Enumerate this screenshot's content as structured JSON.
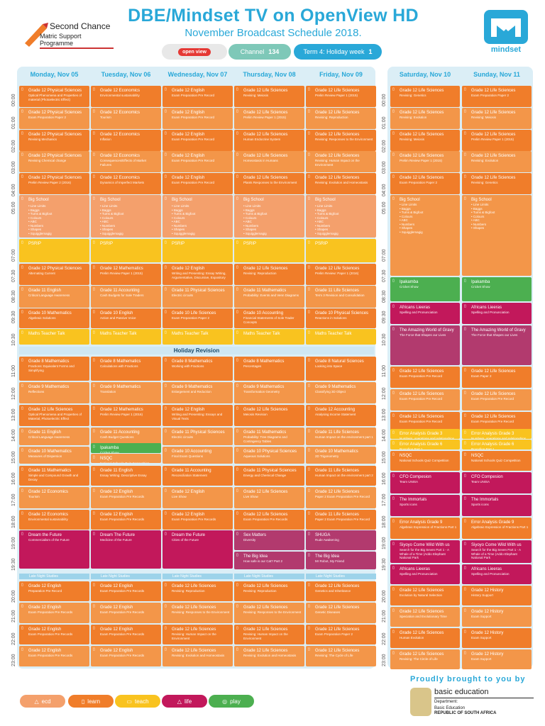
{
  "title": "DBE/Mindset TV on OpenView HD",
  "subtitle": "November Broadcast Schedule 2018.",
  "logo_left": {
    "line1": "Second Chance",
    "line2": "Matric Support Programme"
  },
  "logo_right": "mindset",
  "pills": {
    "openview": "open view",
    "channel_label": "Channel",
    "channel_value": "134",
    "term_label": "Term 4: Holiday week",
    "term_value": "1"
  },
  "days": [
    "Monday, Nov 05",
    "Tuesday, Nov 06",
    "Wednesday, Nov 07",
    "Thursday, Nov 08",
    "Friday, Nov 09",
    "Saturday, Nov 10",
    "Sunday, Nov 11"
  ],
  "times": [
    "00:00",
    "01:00",
    "02:00",
    "03:00",
    "04:00",
    "05:00",
    "07:00",
    "07:30",
    "08:30",
    "09:30",
    "10:30",
    "11:00",
    "12:00",
    "13:00",
    "14:00",
    "15:00",
    "16:00",
    "17:00",
    "18:00",
    "19:00",
    "19:30",
    "20:00",
    "21:00",
    "22:00",
    "23:00"
  ],
  "holiday_revision": "Holiday Revision",
  "late_night": "Late Night Studies",
  "colors": {
    "learn": "#f07d2a",
    "learn2": "#f39649",
    "psrip": "#f9c31f",
    "life": "#c2185b",
    "play": "#4caf50",
    "ecd": "#f4a06c",
    "blue": "#29a8d8"
  },
  "weekday": [
    [
      [
        "Grade 12 Physical Sciences",
        "Optical Phenomena and Properties of material (Photoelectric Effect)"
      ],
      [
        "Grade 12 Economics",
        "Environmental sustainability"
      ],
      [
        "Grade 12 English",
        "Exam Preparation Pre Record"
      ],
      [
        "Grade 12 Life Sciences",
        "Revising: Meiosis"
      ],
      [
        "Grade 12 Life Sciences",
        "Prelim Review Paper 1 (2015)"
      ]
    ],
    [
      [
        "Grade 12 Physical Sciences",
        "Exam Preparation Paper 2"
      ],
      [
        "Grade 12 Economics",
        "Tourism"
      ],
      [
        "Grade 12 English",
        "Exam Preparation Pre Record"
      ],
      [
        "Grade 12 Life Sciences",
        "Prelim Review Paper 1 (2015)"
      ],
      [
        "Grade 12 Life Sciences",
        "Revising: Reproduction"
      ]
    ],
    [
      [
        "Grade 12 Physical Sciences",
        "Revising Mechanics"
      ],
      [
        "Grade 12 Economics",
        "Inflation"
      ],
      [
        "Grade 12 English",
        "Exam Preparation Pre Record"
      ],
      [
        "Grade 12 Life Sciences",
        "Human Endocrine System"
      ],
      [
        "Grade 12 Life Sciences",
        "Revising: Responses to the Environment"
      ]
    ],
    [
      [
        "Grade 12 Physical Sciences",
        "Revising Chemical change"
      ],
      [
        "Grade 12 Economics",
        "Consequences/Effects of Market Failures"
      ],
      [
        "Grade 12 English",
        "Exam Preparation Pre Record"
      ],
      [
        "Grade 12 Life Sciences",
        "Homeostasis in Humans"
      ],
      [
        "Grade 12 Life Sciences",
        "Revising: Human Impact on the Environment"
      ]
    ],
    [
      [
        "Grade 12 Physical Sciences",
        "Prelim Review Paper 2 (2016)"
      ],
      [
        "Grade 12 Economics",
        "Dynamics of Imperfect Markets"
      ],
      [
        "Grade 12 English",
        "Exam Preparation Pre Record"
      ],
      [
        "Grade 12 Life Sciences",
        "Plants Responses to the Environment"
      ],
      [
        "Grade 12 Life Sciences",
        "Revising: Evolution and Homeostasis"
      ]
    ]
  ],
  "bigschool": {
    "title": "Big School",
    "items": [
      "Line Limits",
      "Baggs",
      "Tums & Bigfoot",
      "Colours",
      "ABC",
      "Numbers",
      "Shapes",
      "Squigglemagig"
    ]
  },
  "psrip": "PSRIP",
  "row0730": [
    [
      "Grade 12 Physical Sciences",
      "Alternating Current"
    ],
    [
      "Grade 12 Mathematics",
      "Prelim Review Paper 1 (2015)"
    ],
    [
      "Grade 12 English",
      "Writing and Presenting: Essay Writing, Argumentative, Discursive, Expository"
    ],
    [
      "Grade 12 Life Sciences",
      "Revising: Reproduction"
    ],
    [
      "Grade 12 Life Sciences",
      "Prelim Review: Paper 1 (2016)"
    ]
  ],
  "row0830": [
    [
      "Grade 11 English",
      "Critical Language Awareness"
    ],
    [
      "Grade 11 Accounting",
      "Cash Budgets for Sole Traders"
    ],
    [
      "Grade 11 Physical Sciences",
      "Electric circuits"
    ],
    [
      "Grade 11 Mathematics",
      "Probability: Events and Venn Diagrams"
    ],
    [
      "Grade 11 Life Sciences",
      "Term 3 Revision and Consolidation"
    ]
  ],
  "row0930": [
    [
      "Grade 10 Mathematics",
      "Algebraic Solutions"
    ],
    [
      "Grade 10 English",
      "Action and Passive Voice"
    ],
    [
      "Grade 10 Life Sciences",
      "Exam Preparation Paper 2"
    ],
    [
      "Grade 10 Accounting",
      "Financial Statements of Sole Trader Concepts"
    ],
    [
      "Grade 10 Physical Sciences",
      "Reactions in Solutions"
    ]
  ],
  "maths": "Maths Teacher Talk",
  "row1100": [
    [
      "Grade 8 Mathematics",
      "Fractions: Equivalent Forms and Simplifying"
    ],
    [
      "Grade 8 Mathematics",
      "Calculations with Fractions"
    ],
    [
      "Grade 8 Mathematics",
      "Working with Fractions"
    ],
    [
      "Grade 8 Mathematics",
      "Percentages"
    ],
    [
      "Grade 8 Natural Sciences",
      "Looking into Space"
    ]
  ],
  "row1200": [
    [
      "Grade 9 Mathematics",
      "Reflections"
    ],
    [
      "Grade 9 Mathematics",
      "Translation"
    ],
    [
      "Grade 9 Mathematics",
      "Enlargement and Reduction"
    ],
    [
      "Grade 9 Mathematics",
      "Transformation Geometry"
    ],
    [
      "Grade 9 Mathematics",
      "Classifying 3D Object"
    ]
  ],
  "row1300": [
    [
      "Grade 12 Life Sciences",
      "Optical Phenomena and Properties of Material, Photoelectric Effect"
    ],
    [
      "Grade 12 Mathematics",
      "Prelim Review Paper 1 (2016)"
    ],
    [
      "Grade 12 English",
      "Writing and Presenting: Essays and Visual Texts"
    ],
    [
      "Grade 12 Life Sciences",
      "Meiosis Revision"
    ],
    [
      "Grade 12 Accounting",
      "Analysing Income Statement"
    ]
  ],
  "row1400": [
    [
      "Grade 11 English",
      "Critical Language Awareness"
    ],
    [
      "Grade 11 Accounting",
      "Cash Budget Questions"
    ],
    [
      "Grade 11 Physical Sciences",
      "Electric circuits"
    ],
    [
      "Grade 11 Mathematics",
      "Probability: Tree Diagrams and Contingency Tables"
    ],
    [
      "Grade 11 Life Sciences",
      "Human Impact on the environment part 1"
    ]
  ],
  "ipakamba": {
    "title": "Ipakamba",
    "desc": "Cricket Show"
  },
  "nsqc": {
    "title": "NSQC",
    "desc": "National Schools Quiz Competition"
  },
  "row1500": [
    [
      "Grade 10 Mathematics",
      "Measures of Dispersion"
    ],
    [
      "Grade 10 Accounting",
      "Final Exam Questions"
    ],
    [
      "Grade 10 Physical Sciences",
      "Aqueous Solutions"
    ],
    [
      "Grade 10 Mathematics",
      "2D Trigonometry"
    ]
  ],
  "row1600": [
    [
      "Grade 11 Mathematics",
      "Simple and Compound Growth and Decay"
    ],
    [
      "Grade 11 English",
      "Essay Writing: Descriptive Essay"
    ],
    [
      "Grade 11 Accounting",
      "Reconciliation Statement"
    ],
    [
      "Grade 11 Physical Sciences",
      "Energy and Chemical Change"
    ],
    [
      "Grade 11 Life Sciences",
      "Human Impact on the environment part 2"
    ]
  ],
  "row1700": [
    [
      "Grade 12 Economics",
      "Tourism"
    ],
    [
      "Grade 12 English",
      "Exam Preparation Pre Records"
    ],
    [
      "Grade 12 English",
      "Live Show"
    ],
    [
      "Grade 12 Life Sciences",
      "Live Show"
    ],
    [
      "Grade 12 Life Sciences",
      "Paper 2 Exam Preparation Pre Record"
    ]
  ],
  "row1800": [
    [
      "Grade 12 Economics",
      "Environmental sustainability"
    ],
    [
      "Grade 12 English",
      "Exam Preparation Pre Records"
    ],
    [
      "Grade 12 English",
      "Exam Preparation Pre Records"
    ],
    [
      "Grade 12 Life Sciences",
      "Exam Preparation Pre Records"
    ],
    [
      "Grade 11 Life Sciences",
      "Paper 2 Exam Preparation Pre Record"
    ]
  ],
  "row1900": [
    [
      "Dream the Future",
      "Commercialism of the Future"
    ],
    [
      "Dream The Future",
      "Medicine of the Future"
    ],
    [
      "Dream the Future",
      "Cities of the Future"
    ],
    [
      "Sex Matters",
      "Diversity"
    ],
    [
      "SHUGA",
      "Rude Awakening"
    ]
  ],
  "row1930": [
    [
      "The Big Idea",
      "How safe is our Cat? Part 2"
    ],
    [
      "The Big Idea",
      "Mr Robot, My Friend"
    ]
  ],
  "row2000": [
    [
      "Grade 12 English",
      "Preparation Pre Record"
    ],
    [
      "Grade 12 English",
      "Exam Preparation Pre Records"
    ],
    [
      "Grade 12 Life Sciences",
      "Revising: Reproduction"
    ],
    [
      "Grade 12 Life Sciences",
      "Revising: Reproduction"
    ],
    [
      "Grade 12 Life Sciences",
      "Genetics and Inheritance"
    ]
  ],
  "row2100": [
    [
      "Grade 12 English",
      "Exam Preparation Pre Records"
    ],
    [
      "Grade 12 English",
      "Exam Preparation Pre Records"
    ],
    [
      "Grade 12 Life Sciences",
      "Revising: Responses to the Environment"
    ],
    [
      "Grade 12 Life Sciences",
      "Revising: Responses to the Environment"
    ],
    [
      "Grade 12 Life Sciences",
      "Genetic Diseases"
    ]
  ],
  "row2200": [
    [
      "Grade 12 English",
      "Exam Preparation Pre Records"
    ],
    [
      "Grade 12 English",
      "Exam Preparation Pre Records"
    ],
    [
      "Grade 12 Life Sciences",
      "Revising: Human Impact on the Environment"
    ],
    [
      "Grade 12 Life Sciences",
      "Revising: Human Impact on the Environment"
    ],
    [
      "Grade 12 Life Sciences",
      "Exam Preparation Paper 2"
    ]
  ],
  "row2300": [
    [
      "Grade 12 English",
      "Exam Preparation Pre Records"
    ],
    [
      "Grade 12 English",
      "Exam Preparation Pre Records"
    ],
    [
      "Grade 12 Life Sciences",
      "Revising: Evolution and Homeostasis"
    ],
    [
      "Grade 12 Life Sciences",
      "Revising: Evolution and Homeostasis"
    ],
    [
      "Grade 12 Life Sciences",
      "Revising: The Cycle of Life"
    ]
  ],
  "sat": [
    [
      "Grade 12 Life Sciences",
      "Revising: Genetics"
    ],
    [
      "Grade 12 Life Sciences",
      "Revising: Evolution"
    ],
    [
      "Grade 12 Life Sciences",
      "Revising: Meiosis"
    ],
    [
      "Grade 12 Life Sciences",
      "Prelim Review Paper 1 (2015)"
    ],
    [
      "Grade 12 Life Sciences",
      "Exam Preparation Paper 2"
    ]
  ],
  "sun": [
    [
      "Grade 12 Life Sciences",
      "Exam Preparation Paper 2"
    ],
    [
      "Grade 12 Life Sciences",
      "Revising: Meiosis"
    ],
    [
      "Grade 12 Life Sciences",
      "Prelim Review Paper 1 (2015)"
    ],
    [
      "Grade 12 Life Sciences",
      "Revising: Evolution"
    ],
    [
      "Grade 12 Life Sciences",
      "Revising: Genetics"
    ]
  ],
  "weekend_mid": {
    "ipakamba": "Ipakamba",
    "ipakamba_d": "Cricket Show",
    "africanl": "Africans Lieeras",
    "africanl_d": "Spelling and Pronunciation",
    "gravy": "The Amazing World of Gravy",
    "gravy_d": "The Force that Shapes our Lives"
  },
  "sat_pm": [
    [
      "Grade 12 Life Sciences",
      "Exam Preparation Pre Record"
    ],
    [
      "Grade 12 Life Sciences",
      "Exam Preparation Pre Record"
    ],
    [
      "Grade 12 Life Sciences",
      "Exam Preparation Pre Record"
    ]
  ],
  "sun_pm": [
    [
      "Grade 12 Life Sciences",
      "Exam Paper 2"
    ],
    [
      "Grade 12 Life Sciences",
      "Exam Preparation Pre Record"
    ],
    [
      "Grade 12 Life Sciences",
      "Exam Preparation Pre Record"
    ]
  ],
  "error3": [
    "Error Analysis Grade 3",
    "Numbers, operations and relationships Part 1"
  ],
  "error6": [
    "Error Analysis Grade 6",
    "Rounding Part 1"
  ],
  "cfo": [
    "CFO Compesion",
    "Team UNISA"
  ],
  "immortals": [
    "The Immortals",
    "Sports icons"
  ],
  "error9": [
    "Error Analysis Grade 9",
    "Algebraic Expression of Fractions Part 1"
  ],
  "siyoyo": [
    "Siyoyo Come Wild With us",
    "Search for the Big Seven Part 1 - A Whale of a Time (Addo Elephant National Park"
  ],
  "sat_night": [
    [
      "Africans Lieeras",
      "Spelling and Pronunciation"
    ],
    [
      "Grade 12 Life Sciences",
      "Evolution by Natural Selection"
    ],
    [
      "Grade 12 Life Sciences",
      "Speciation and Evolutionary Time"
    ],
    [
      "Grade 12 Life Sciences",
      "Human Evolution"
    ],
    [
      "Grade 12 Life Sciences",
      "Revising: The Circle of Life"
    ]
  ],
  "sun_night": [
    [
      "Africans Lieeras",
      "Spelling and Pronunciation"
    ],
    [
      "Grade 12 History",
      "History Support"
    ],
    [
      "Grade 12 History",
      "Exam Support"
    ],
    [
      "Grade 12 History",
      "Exam Support"
    ],
    [
      "Grade 12 History",
      "Exam Support"
    ]
  ],
  "proudly": "Proudly brought to you by",
  "basic_ed": {
    "a": "basic education",
    "b": "Department:",
    "c": "Basic Education",
    "d": "REPUBLIC OF SOUTH AFRICA"
  },
  "legend": {
    "ecd": "ecd",
    "learn": "learn",
    "teach": "teach",
    "life": "life",
    "play": "play"
  }
}
